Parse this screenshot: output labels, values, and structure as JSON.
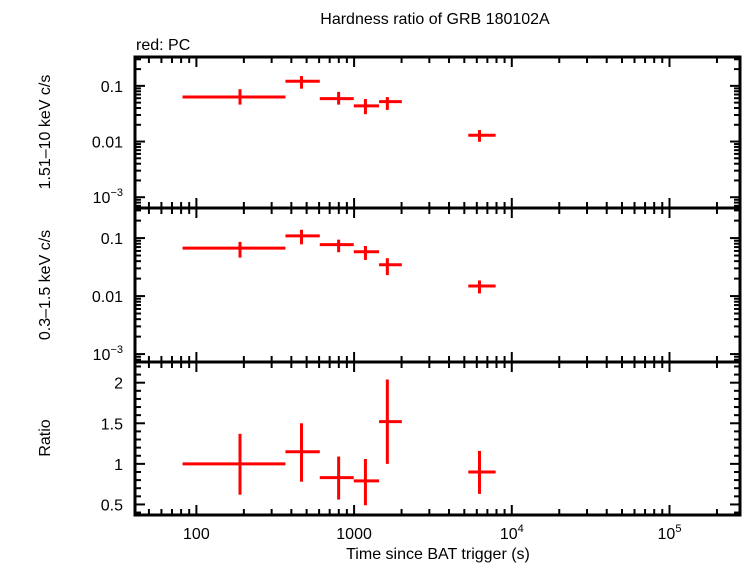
{
  "chart_data": {
    "type": "scatter",
    "title": "Hardness ratio of GRB 180102A",
    "legend_note": "red: PC",
    "xlabel": "Time since BAT trigger (s)",
    "xscale": "log",
    "xlim": [
      40.8,
      280000
    ],
    "x_tick_labels": [
      "100",
      "1000",
      "10^4",
      "10^5"
    ],
    "series_color": "#ff0000",
    "x": [
      189,
      464,
      798,
      1180,
      1625,
      6240
    ],
    "x_low": [
      81.7,
      367,
      606,
      995,
      1440,
      5300
    ],
    "x_high": [
      367,
      606,
      995,
      1440,
      2007,
      7900
    ],
    "panels": [
      {
        "ylabel": "1.51–10 keV c/s",
        "yscale": "log",
        "ylim": [
          0.00064,
          0.33
        ],
        "y_tick_labels": [
          "0.1",
          "0.01",
          "10^-3"
        ],
        "y": [
          0.063,
          0.121,
          0.059,
          0.0437,
          0.052,
          0.013
        ],
        "y_low": [
          0.046,
          0.089,
          0.046,
          0.031,
          0.037,
          0.0099
        ],
        "y_high": [
          0.087,
          0.15,
          0.078,
          0.058,
          0.063,
          0.0161
        ]
      },
      {
        "ylabel": "0.3–1.5 keV c/s",
        "yscale": "log",
        "ylim": [
          0.00073,
          0.33
        ],
        "y_tick_labels": [
          "0.1",
          "0.01",
          "10^-3"
        ],
        "y": [
          0.067,
          0.109,
          0.077,
          0.058,
          0.0347,
          0.0149
        ],
        "y_low": [
          0.046,
          0.078,
          0.057,
          0.042,
          0.023,
          0.0111
        ],
        "y_high": [
          0.086,
          0.139,
          0.094,
          0.073,
          0.045,
          0.0186
        ]
      },
      {
        "ylabel": "Ratio",
        "yscale": "linear",
        "ylim": [
          0.37,
          2.255
        ],
        "y_tick_labels": [
          "0.5",
          "1",
          "1.5",
          "2"
        ],
        "y": [
          1.0,
          1.15,
          0.83,
          0.79,
          1.52,
          0.9
        ],
        "y_low": [
          0.62,
          0.78,
          0.56,
          0.49,
          1.0,
          0.63
        ],
        "y_high": [
          1.37,
          1.5,
          1.09,
          1.06,
          2.04,
          1.16
        ]
      }
    ]
  }
}
